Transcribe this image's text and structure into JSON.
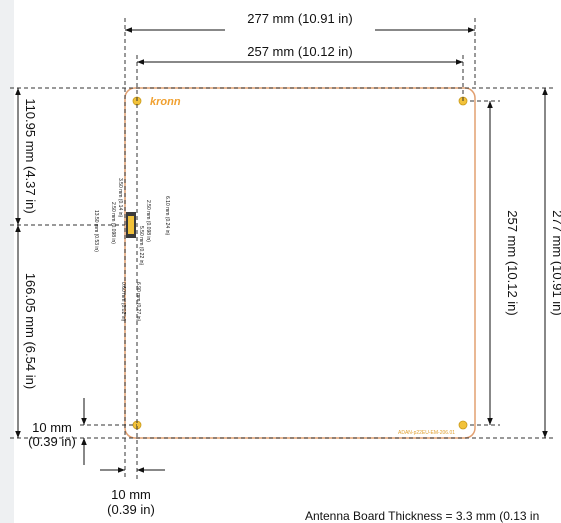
{
  "logo": "kronn",
  "part_number": "ADAN-p22EU-EM-206.01",
  "note": "Antenna Board Thickness = 3.3 mm  (0.13 in",
  "dimensions": {
    "outer_width": "277 mm  (10.91 in)",
    "hole_width": "257 mm  (10.12 in)",
    "hole_height": "257 mm  (10.12 in)",
    "outer_height": "277 mm  (10.91 in)",
    "top_to_connector": "110.95 mm  (4.37 in)",
    "connector_to_bottom": "166.05 mm  (6.54 in)",
    "hole_offset_y": [
      "10 mm",
      "(0.39 in)"
    ],
    "hole_offset_x": [
      "10 mm",
      "(0.39 in)"
    ]
  },
  "connector_labels": [
    "3.50 mm (0.14 in)",
    "2.50 mm (0.098 in)",
    "6.10 mm (0.24 in)",
    "13.50 mm (0.53 in)",
    "2.50 mm (0.098 in)",
    "5.50 mm (0.22 in)",
    "6.90 mm (0.27 in)",
    "0.60 mm (0.02 in)"
  ]
}
